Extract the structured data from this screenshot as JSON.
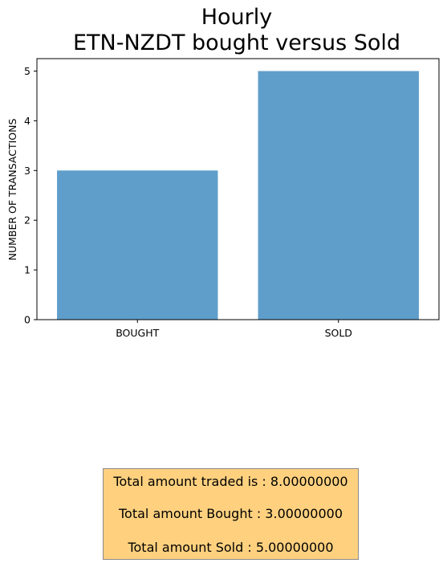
{
  "chart_data": {
    "type": "bar",
    "title_line1": "Hourly",
    "title_line2": "ETN-NZDT bought versus Sold",
    "categories": [
      "BOUGHT",
      "SOLD"
    ],
    "values": [
      3,
      5
    ],
    "bar_color": "#5f9ecb",
    "ylabel": "NUMBER OF TRANSACTIONS",
    "xlabel": "",
    "ylim": [
      0,
      5.25
    ],
    "yticks": [
      "0",
      "1",
      "2",
      "3",
      "4",
      "5"
    ],
    "grid": false
  },
  "summary": {
    "total_traded": "Total amount traded is : 8.00000000",
    "total_bought": "Total amount Bought : 3.00000000",
    "total_sold": "Total amount Sold : 5.00000000",
    "background": "#ffd17f"
  }
}
